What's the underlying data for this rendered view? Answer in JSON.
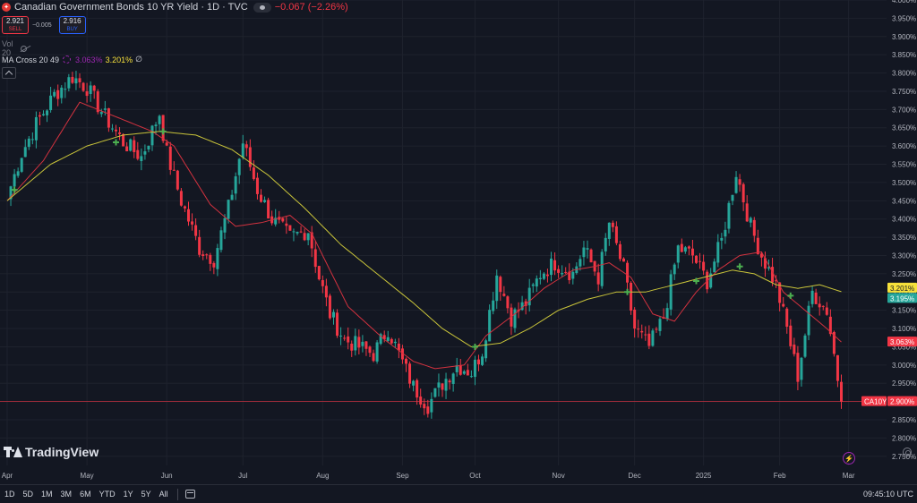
{
  "legend": {
    "title": "Canadian Government Bonds 10 YR Yield · 1D · TVC",
    "change": "−0.067 (−2.26%)",
    "sell_price": "2.921",
    "sell_label": "SELL",
    "spread": "−0.005",
    "buy_price": "2.916",
    "buy_label": "BUY",
    "vol_label": "Vol 20",
    "ma_label": "MA Cross 20 49",
    "ma_value_fast": "3.063%",
    "ma_value_slow": "3.201%",
    "ma_value_extra": "∅"
  },
  "brand": {
    "logo_text": "TradingView"
  },
  "bottom_bar": {
    "ranges": [
      "1D",
      "5D",
      "1M",
      "3M",
      "6M",
      "YTD",
      "1Y",
      "5Y",
      "All"
    ],
    "clock": "09:45:10 UTC"
  },
  "colors": {
    "up": "#26a69a",
    "down": "#f23645",
    "ma_fast": "#f23645",
    "ma_slow": "#c9c43a",
    "cross_marker": "#4caf50",
    "background": "#131722"
  },
  "chart_data": {
    "type": "candlestick",
    "y_unit": "%",
    "ylim": [
      2.725,
      4.0
    ],
    "y_ticks": [
      "4.000%",
      "3.950%",
      "3.900%",
      "3.850%",
      "3.800%",
      "3.750%",
      "3.700%",
      "3.650%",
      "3.600%",
      "3.550%",
      "3.500%",
      "3.450%",
      "3.400%",
      "3.350%",
      "3.300%",
      "3.250%",
      "3.200%",
      "3.150%",
      "3.100%",
      "3.050%",
      "3.000%",
      "2.950%",
      "2.900%",
      "2.850%",
      "2.800%",
      "2.750%"
    ],
    "x_ticks": [
      "Apr",
      "May",
      "Jun",
      "Jul",
      "Aug",
      "Sep",
      "Oct",
      "Nov",
      "Dec",
      "2025",
      "Feb",
      "Mar"
    ],
    "x_tick_bar_index": [
      0,
      22,
      44,
      65,
      87,
      109,
      129,
      152,
      173,
      192,
      213,
      232
    ],
    "bar_count": 230,
    "price_labels": [
      {
        "value": 3.201,
        "text": "3.201%",
        "color": "#f7e13b",
        "text_color": "#131722"
      },
      {
        "value": 3.195,
        "text": "3.195%",
        "color": "#26a69a",
        "text_color": "#ffffff"
      },
      {
        "value": 3.063,
        "text": "3.063%",
        "color": "#f23645",
        "text_color": "#ffffff"
      },
      {
        "value": 2.9,
        "text": "2.900%",
        "color": "#f23645",
        "text_color": "#ffffff",
        "symbol": "CA10Y"
      }
    ],
    "last_price": 2.9,
    "anchors": [
      [
        0,
        3.46
      ],
      [
        4,
        3.58
      ],
      [
        8,
        3.66
      ],
      [
        13,
        3.74
      ],
      [
        18,
        3.79
      ],
      [
        22,
        3.76
      ],
      [
        27,
        3.68
      ],
      [
        32,
        3.61
      ],
      [
        37,
        3.57
      ],
      [
        42,
        3.69
      ],
      [
        44,
        3.58
      ],
      [
        48,
        3.45
      ],
      [
        53,
        3.32
      ],
      [
        57,
        3.29
      ],
      [
        61,
        3.43
      ],
      [
        65,
        3.61
      ],
      [
        69,
        3.48
      ],
      [
        73,
        3.4
      ],
      [
        78,
        3.35
      ],
      [
        83,
        3.37
      ],
      [
        86,
        3.24
      ],
      [
        89,
        3.14
      ],
      [
        93,
        3.07
      ],
      [
        97,
        3.05
      ],
      [
        101,
        3.03
      ],
      [
        105,
        3.1
      ],
      [
        108,
        3.03
      ],
      [
        112,
        2.94
      ],
      [
        116,
        2.89
      ],
      [
        120,
        2.95
      ],
      [
        124,
        3.0
      ],
      [
        128,
        2.98
      ],
      [
        131,
        3.04
      ],
      [
        135,
        3.25
      ],
      [
        139,
        3.13
      ],
      [
        143,
        3.17
      ],
      [
        147,
        3.25
      ],
      [
        151,
        3.28
      ],
      [
        156,
        3.25
      ],
      [
        159,
        3.32
      ],
      [
        163,
        3.24
      ],
      [
        166,
        3.39
      ],
      [
        170,
        3.26
      ],
      [
        173,
        3.1
      ],
      [
        177,
        3.05
      ],
      [
        181,
        3.13
      ],
      [
        185,
        3.32
      ],
      [
        189,
        3.3
      ],
      [
        193,
        3.23
      ],
      [
        197,
        3.34
      ],
      [
        201,
        3.53
      ],
      [
        205,
        3.38
      ],
      [
        208,
        3.3
      ],
      [
        212,
        3.22
      ],
      [
        215,
        3.1
      ],
      [
        218,
        2.97
      ],
      [
        222,
        3.2
      ],
      [
        226,
        3.15
      ],
      [
        228,
        3.03
      ],
      [
        230,
        2.9
      ]
    ],
    "series": [
      {
        "name": "MA 20",
        "anchors": [
          [
            0,
            3.45
          ],
          [
            10,
            3.56
          ],
          [
            20,
            3.72
          ],
          [
            30,
            3.68
          ],
          [
            40,
            3.64
          ],
          [
            46,
            3.6
          ],
          [
            56,
            3.44
          ],
          [
            63,
            3.38
          ],
          [
            70,
            3.39
          ],
          [
            78,
            3.41
          ],
          [
            84,
            3.36
          ],
          [
            94,
            3.16
          ],
          [
            104,
            3.07
          ],
          [
            112,
            3.01
          ],
          [
            118,
            2.99
          ],
          [
            126,
            3.0
          ],
          [
            132,
            3.08
          ],
          [
            140,
            3.14
          ],
          [
            148,
            3.21
          ],
          [
            156,
            3.26
          ],
          [
            162,
            3.27
          ],
          [
            166,
            3.28
          ],
          [
            172,
            3.24
          ],
          [
            178,
            3.14
          ],
          [
            184,
            3.12
          ],
          [
            190,
            3.2
          ],
          [
            196,
            3.26
          ],
          [
            202,
            3.3
          ],
          [
            208,
            3.31
          ],
          [
            214,
            3.2
          ],
          [
            220,
            3.15
          ],
          [
            226,
            3.1
          ],
          [
            230,
            3.063
          ]
        ]
      },
      {
        "name": "MA 49",
        "anchors": [
          [
            0,
            3.45
          ],
          [
            12,
            3.55
          ],
          [
            22,
            3.6
          ],
          [
            32,
            3.63
          ],
          [
            42,
            3.64
          ],
          [
            52,
            3.63
          ],
          [
            62,
            3.59
          ],
          [
            72,
            3.52
          ],
          [
            82,
            3.43
          ],
          [
            92,
            3.33
          ],
          [
            102,
            3.25
          ],
          [
            112,
            3.17
          ],
          [
            120,
            3.1
          ],
          [
            128,
            3.05
          ],
          [
            136,
            3.06
          ],
          [
            144,
            3.1
          ],
          [
            152,
            3.15
          ],
          [
            160,
            3.18
          ],
          [
            168,
            3.2
          ],
          [
            176,
            3.2
          ],
          [
            184,
            3.22
          ],
          [
            192,
            3.24
          ],
          [
            200,
            3.26
          ],
          [
            206,
            3.25
          ],
          [
            212,
            3.22
          ],
          [
            218,
            3.21
          ],
          [
            224,
            3.22
          ],
          [
            230,
            3.201
          ]
        ]
      }
    ],
    "cross_points": [
      [
        2,
        3.48
      ],
      [
        30,
        3.61
      ],
      [
        43,
        3.64
      ],
      [
        129,
        3.05
      ],
      [
        171,
        3.2
      ],
      [
        190,
        3.23
      ],
      [
        202,
        3.27
      ],
      [
        216,
        3.19
      ]
    ]
  }
}
